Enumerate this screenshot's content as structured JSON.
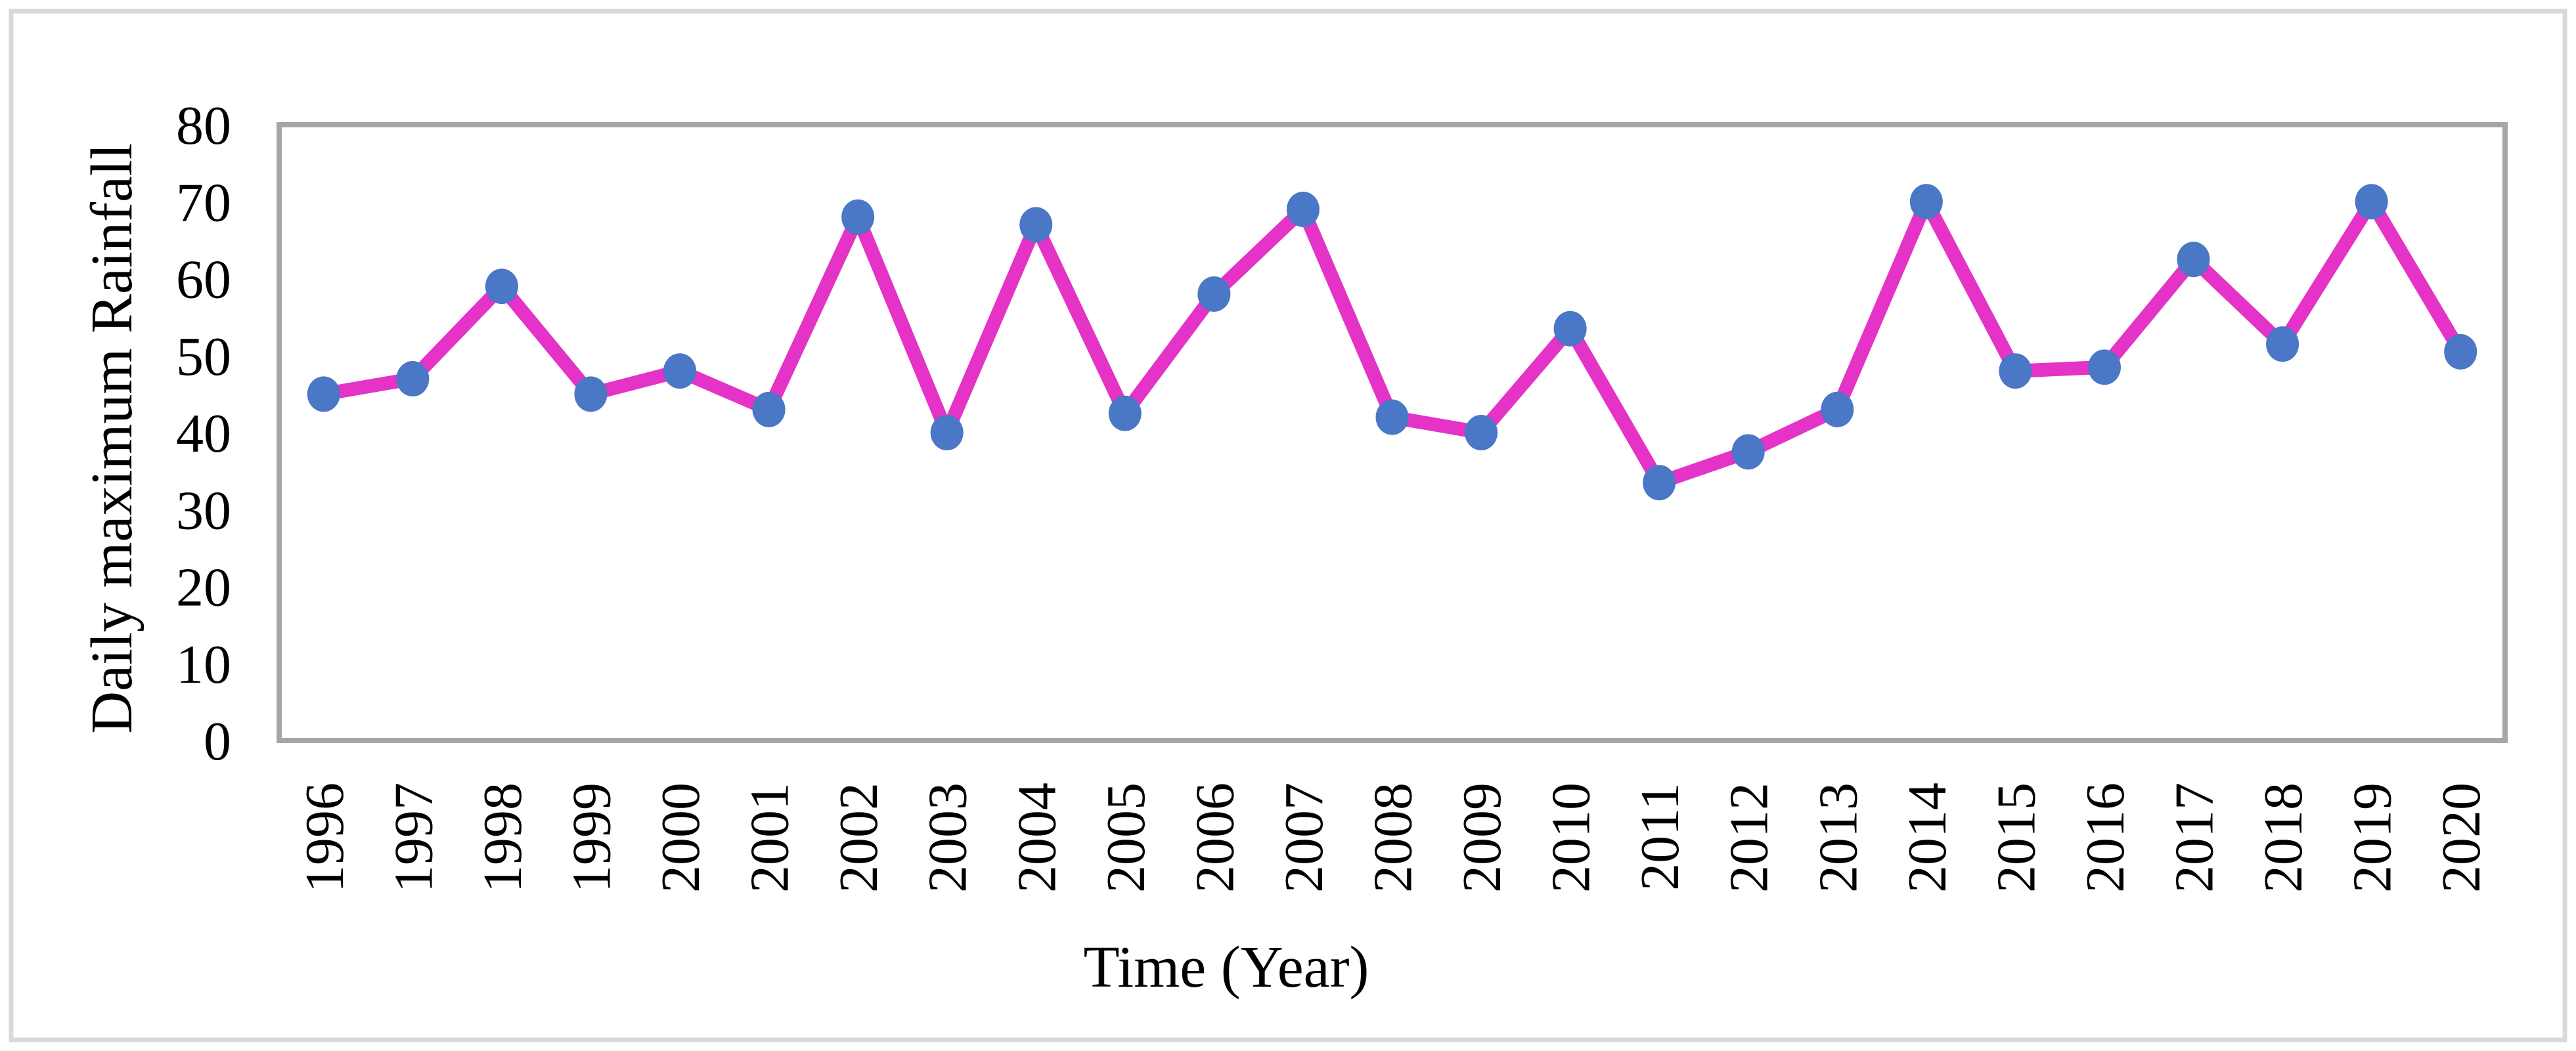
{
  "chart_data": {
    "type": "line",
    "xlabel": "Time (Year)",
    "ylabel": "Daily maximum Rainfall",
    "categories": [
      "1996",
      "1997",
      "1998",
      "1999",
      "2000",
      "2001",
      "2002",
      "2003",
      "2004",
      "2005",
      "2006",
      "2007",
      "2008",
      "2009",
      "2010",
      "2011",
      "2012",
      "2013",
      "2014",
      "2015",
      "2016",
      "2017",
      "2018",
      "2019",
      "2020"
    ],
    "series": [
      {
        "name": "Daily maximum Rainfall",
        "values": [
          45,
          47,
          59,
          45,
          48,
          43,
          68,
          40,
          67,
          42.5,
          58,
          69,
          42,
          40,
          53.5,
          33.5,
          37.5,
          43,
          70,
          48,
          48.5,
          62.5,
          51.5,
          70,
          50.5
        ],
        "line_color": "#E433C6",
        "marker_color": "#4A77C6",
        "marker_shape": "ellipse"
      }
    ],
    "ylim": [
      0,
      80
    ],
    "yticks": [
      "0",
      "10",
      "20",
      "30",
      "40",
      "50",
      "60",
      "70",
      "80"
    ],
    "x_tick_rotation_deg": 90,
    "grid": false,
    "legend_position": "none",
    "plot_border_color": "#A6A6A6",
    "outer_border_color": "#D9D9D9",
    "background_color": "#FFFFFF",
    "text_color": "#000000"
  }
}
